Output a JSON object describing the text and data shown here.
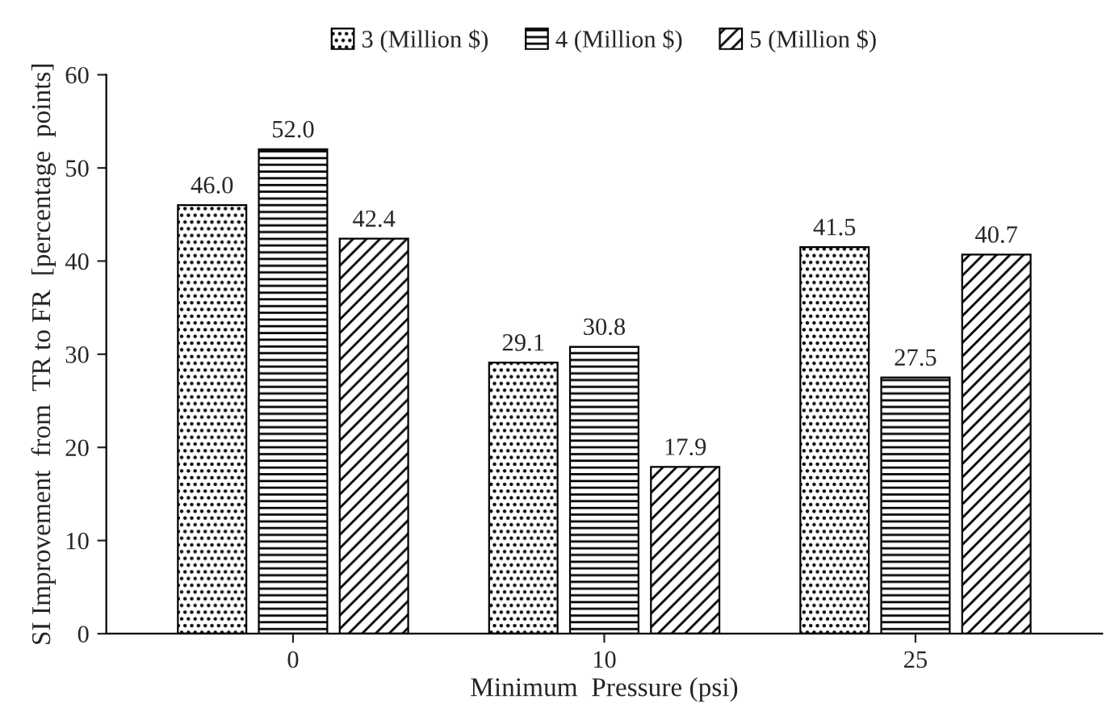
{
  "chart_data": {
    "type": "bar",
    "xlabel": "Minimum  Pressure (psi)",
    "ylabel": "SI Improvement  from  TR to FR  [percentage  points]",
    "categories": [
      "0",
      "10",
      "25"
    ],
    "series": [
      {
        "name": "3 (Million $)",
        "color": "#000000",
        "values": [
          46.0,
          29.1,
          41.5
        ],
        "value_labels": [
          "46.0",
          "29.1",
          "41.5"
        ]
      },
      {
        "name": "4 (Million $)",
        "color": "#000000",
        "values": [
          52.0,
          30.8,
          27.5
        ],
        "value_labels": [
          "52.0",
          "30.8",
          "27.5"
        ]
      },
      {
        "name": "5 (Million $)",
        "color": "#000000",
        "values": [
          42.4,
          17.9,
          40.7
        ],
        "value_labels": [
          "42.4",
          "17.9",
          "40.7"
        ]
      }
    ],
    "ylim": [
      0,
      60
    ],
    "yticks": [
      0,
      10,
      20,
      30,
      40,
      50,
      60
    ],
    "legend": "top",
    "grid": false
  }
}
